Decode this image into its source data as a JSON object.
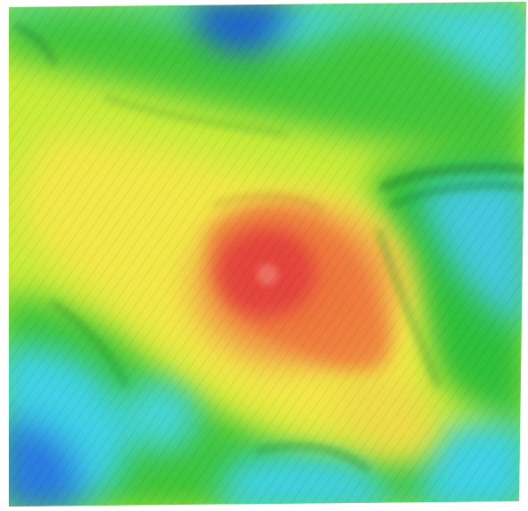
{
  "map": {
    "type": "shaded-relief elevation map",
    "background": "#ffffff",
    "palette": {
      "low": "#1f5fd6",
      "low_mid": "#3fd2e6",
      "mid": "#2fbf3a",
      "mid_high": "#c9ec3a",
      "high_mid": "#f2e84a",
      "high": "#f07a3c",
      "peak": "#e2403c"
    }
  }
}
